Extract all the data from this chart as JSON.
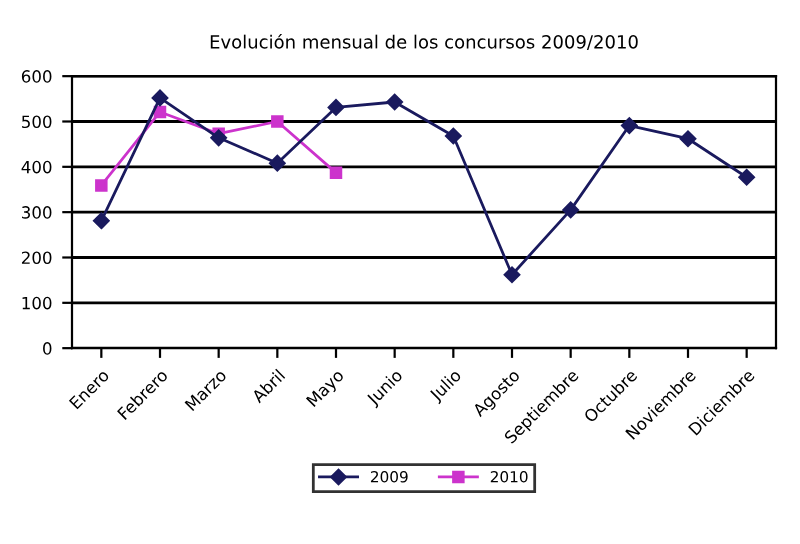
{
  "chart_data": {
    "type": "line",
    "title": "Evolución mensual de los concursos 2009/2010",
    "categories": [
      "Enero",
      "Febrero",
      "Marzo",
      "Abril",
      "Mayo",
      "Junio",
      "Julio",
      "Agosto",
      "Septiembre",
      "Octubre",
      "Noviembre",
      "Diciembre"
    ],
    "series": [
      {
        "name": "2009",
        "color": "#1a1a5e",
        "marker": "diamond",
        "values": [
          281,
          552,
          464,
          408,
          531,
          543,
          468,
          162,
          305,
          491,
          462,
          377
        ]
      },
      {
        "name": "2010",
        "color": "#cc33cc",
        "marker": "square",
        "values": [
          359,
          521,
          473,
          500,
          387,
          null,
          null,
          null,
          null,
          null,
          null,
          null
        ]
      }
    ],
    "ylim": [
      0,
      600
    ],
    "yticks": [
      0,
      100,
      200,
      300,
      400,
      500,
      600
    ],
    "grid": "y",
    "legend": "bottom"
  }
}
